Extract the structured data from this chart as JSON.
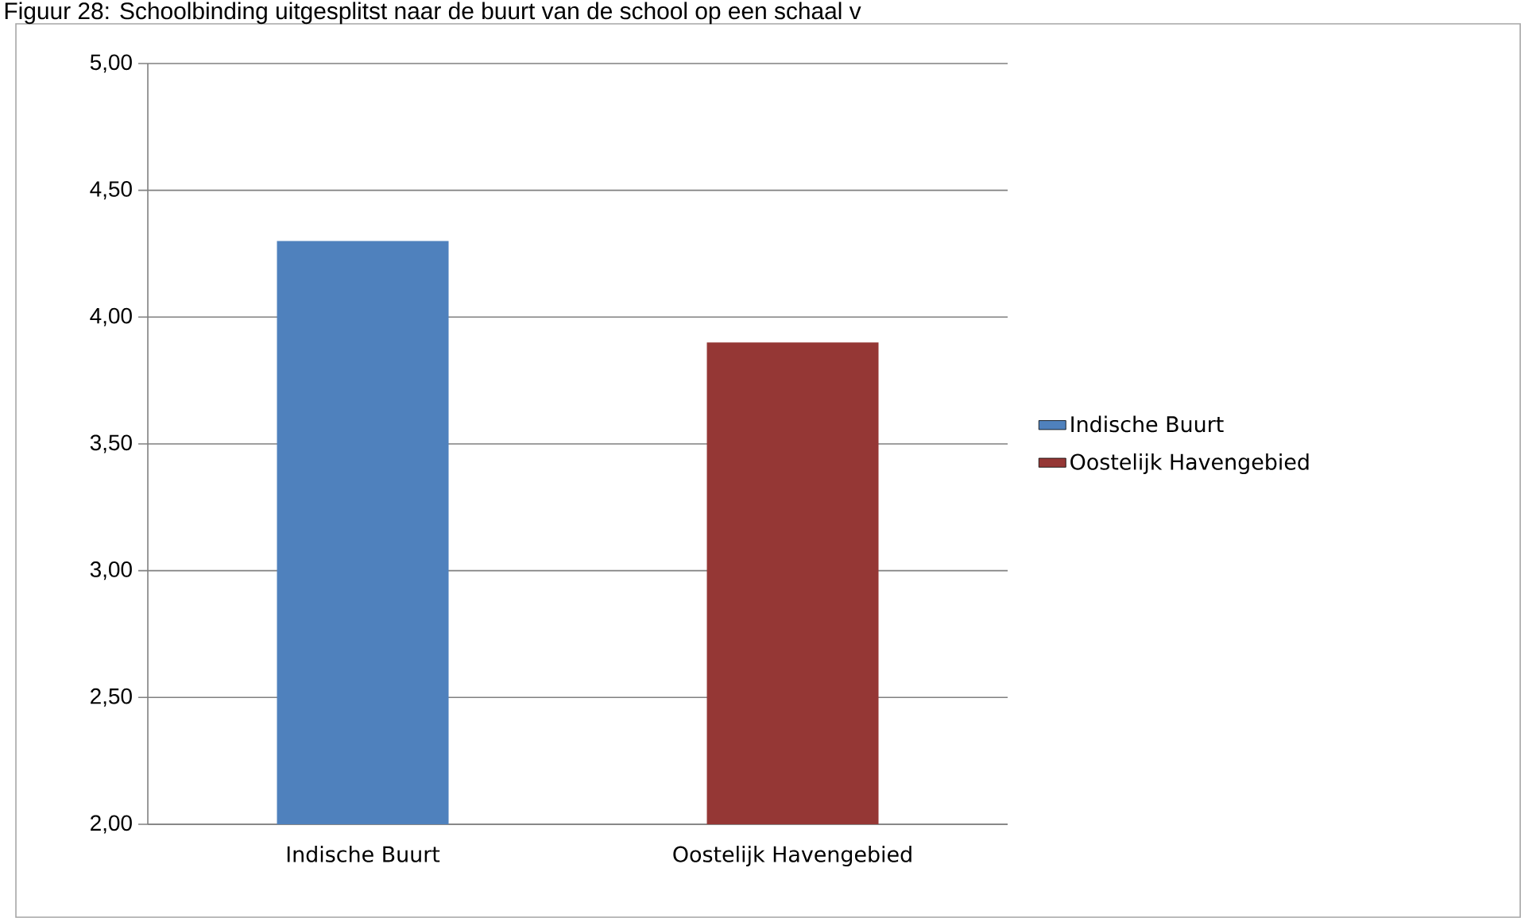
{
  "chart_data": {
    "type": "bar",
    "title": "Figuur 28: Schoolbinding uitgesplitst naar de buurt van de school op een schaal v",
    "categories": [
      "Indische Buurt",
      "Oostelijk Havengebied"
    ],
    "series": [
      {
        "name": "Indische Buurt",
        "color": "#4f81bd",
        "values": [
          4.3,
          null
        ]
      },
      {
        "name": "Oostelijk Havengebied",
        "color": "#953735",
        "values": [
          null,
          3.9
        ]
      }
    ],
    "ylim": [
      2,
      5
    ],
    "yticks": [
      {
        "value": 2,
        "label": "2,00"
      },
      {
        "value": 2.5,
        "label": "2,50"
      },
      {
        "value": 3,
        "label": "3,00"
      },
      {
        "value": 3.5,
        "label": "3,50"
      },
      {
        "value": 4,
        "label": "4,00"
      },
      {
        "value": 4.5,
        "label": "4,50"
      },
      {
        "value": 5,
        "label": "5,00"
      }
    ],
    "grid": "y",
    "legend": "right"
  }
}
